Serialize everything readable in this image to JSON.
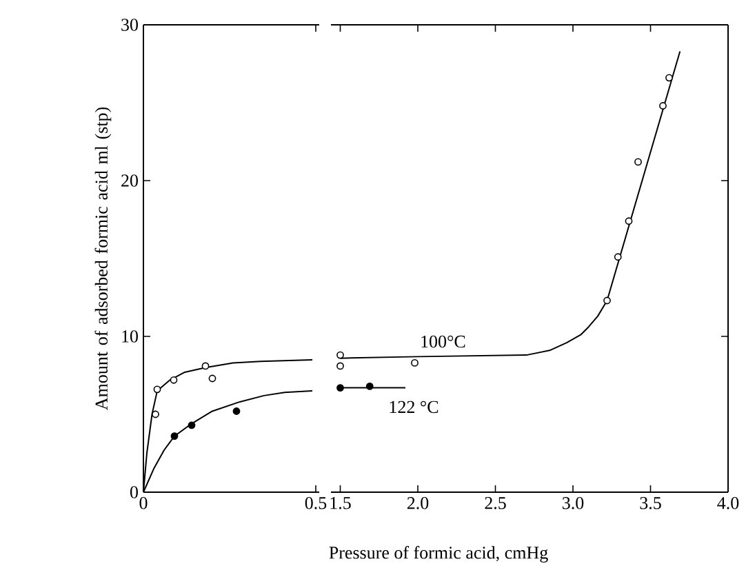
{
  "chart_data": [
    {
      "type": "scatter",
      "ylabel": "Amount of adsorbed formic acid ml (stp)",
      "xlim": [
        0,
        0.51
      ],
      "xticks": [
        0,
        0.5
      ],
      "ylim": [
        0,
        30
      ],
      "yticks": [
        0,
        10,
        20,
        30
      ],
      "marker": "circle",
      "series": [
        {
          "type": "line",
          "color": "#000000",
          "marker": "none",
          "x": [
            0,
            0.01,
            0.025,
            0.04,
            0.077,
            0.12,
            0.18,
            0.26,
            0.34,
            0.49
          ],
          "values": [
            0,
            2.5,
            5.0,
            6.5,
            7.2,
            7.7,
            8.0,
            8.3,
            8.4,
            8.5
          ]
        },
        {
          "type": "line",
          "color": "#000000",
          "marker": "none",
          "x": [
            0,
            0.03,
            0.06,
            0.09,
            0.14,
            0.2,
            0.28,
            0.35,
            0.41,
            0.49
          ],
          "values": [
            0,
            1.5,
            2.7,
            3.6,
            4.4,
            5.2,
            5.8,
            6.2,
            6.4,
            6.5
          ]
        },
        {
          "color": "#ffffff",
          "x": [
            0.035,
            0.04,
            0.088,
            0.18,
            0.2
          ],
          "values": [
            5.0,
            6.6,
            7.2,
            8.1,
            7.3
          ]
        },
        {
          "color": "#000000",
          "x": [
            0.09,
            0.14,
            0.27
          ],
          "values": [
            3.6,
            4.3,
            5.2
          ]
        }
      ]
    },
    {
      "type": "scatter",
      "xlabel": "Pressure of formic acid, cmHg",
      "xlim": [
        1.44,
        4.0
      ],
      "xticks": [
        1.5,
        {
          "value": 2.0,
          "label": "2.0"
        },
        2.5,
        {
          "value": 3.0,
          "label": "3.0"
        },
        3.5,
        {
          "value": 4.0,
          "label": "4.0"
        }
      ],
      "ylim": [
        0,
        30
      ],
      "yticks": [
        0,
        10,
        20,
        30
      ],
      "tick_labels": "x",
      "marker": "circle",
      "annotations": [
        "100°C",
        "122 °C"
      ],
      "series": [
        {
          "type": "line",
          "color": "#000000",
          "marker": "none",
          "x": [
            1.5,
            2.0,
            2.7,
            2.85,
            2.96,
            3.05,
            3.1,
            3.16,
            3.22,
            3.69
          ],
          "values": [
            8.6,
            8.7,
            8.8,
            9.1,
            9.6,
            10.1,
            10.6,
            11.3,
            12.3,
            28.3
          ]
        },
        {
          "type": "line",
          "color": "#000000",
          "marker": "none",
          "x": [
            1.5,
            1.92
          ],
          "values": [
            6.7,
            6.7
          ]
        },
        {
          "color": "#ffffff",
          "x": [
            1.5,
            1.5,
            1.98,
            3.22,
            3.29,
            3.36,
            3.42,
            3.58,
            3.62
          ],
          "values": [
            8.8,
            8.1,
            8.3,
            12.3,
            15.1,
            17.4,
            21.2,
            24.8,
            26.6
          ]
        },
        {
          "color": "#000000",
          "x": [
            1.5,
            1.69
          ],
          "values": [
            6.7,
            6.8
          ]
        }
      ]
    }
  ]
}
